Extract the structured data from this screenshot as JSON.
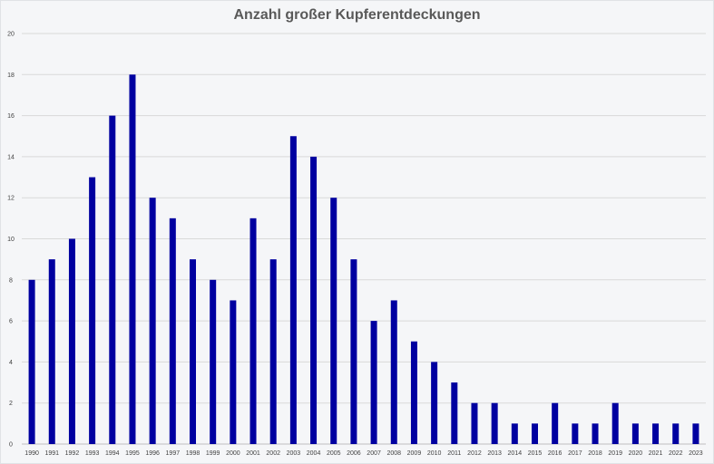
{
  "chart_data": {
    "type": "bar",
    "title": "Anzahl großer Kupferentdeckungen",
    "xlabel": "",
    "ylabel": "",
    "ylim": [
      0,
      20
    ],
    "yticks": [
      0,
      2,
      4,
      6,
      8,
      10,
      12,
      14,
      16,
      18,
      20
    ],
    "grid": true,
    "bar_color": "#0000a0",
    "categories": [
      "1990",
      "1991",
      "1992",
      "1993",
      "1994",
      "1995",
      "1996",
      "1997",
      "1998",
      "1999",
      "2000",
      "2001",
      "2002",
      "2003",
      "2004",
      "2005",
      "2006",
      "2007",
      "2008",
      "2009",
      "2010",
      "2011",
      "2012",
      "2013",
      "2014",
      "2015",
      "2016",
      "2017",
      "2018",
      "2019",
      "2020",
      "2021",
      "2022",
      "2023"
    ],
    "values": [
      8,
      9,
      10,
      13,
      16,
      18,
      12,
      11,
      9,
      8,
      7,
      11,
      9,
      15,
      14,
      12,
      9,
      6,
      7,
      5,
      4,
      3,
      2,
      2,
      1,
      1,
      2,
      1,
      1,
      2,
      1,
      1,
      1,
      1
    ]
  }
}
